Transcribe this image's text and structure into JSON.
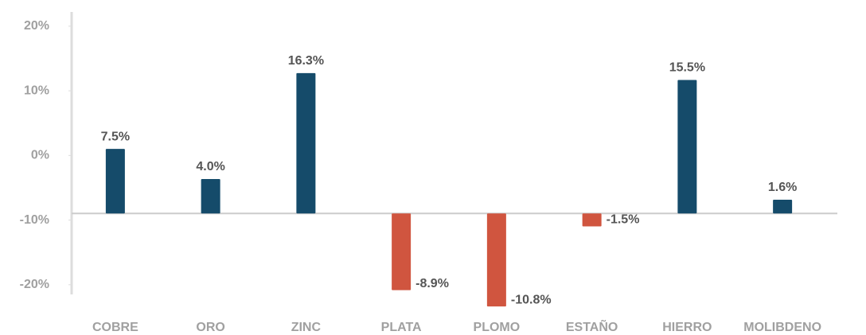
{
  "chart_data": {
    "type": "bar",
    "categories": [
      "COBRE",
      "ORO",
      "ZINC",
      "PLATA",
      "PLOMO",
      "ESTAÑO",
      "HIERRO",
      "MOLIBDENO"
    ],
    "series": [
      {
        "axis": "y2",
        "values": [
          7.5,
          4.0,
          16.3,
          -8.9,
          -10.8,
          -1.5,
          15.5,
          1.6
        ],
        "value_labels": [
          "7.5%",
          "4.0%",
          "16.3%",
          "-8.9%",
          "-10.8%",
          "-1.5%",
          "15.5%",
          "1.6%"
        ],
        "colors": [
          "#154b6a",
          "#154b6a",
          "#154b6a",
          "#d0553f",
          "#d0553f",
          "#d0553f",
          "#154b6a",
          "#154b6a"
        ]
      }
    ],
    "ylim": [
      -21.5,
      22.2
    ],
    "yticks": [
      {
        "value": 20,
        "label": "20%"
      },
      {
        "value": 10,
        "label": "10%"
      },
      {
        "value": 0,
        "label": "0%"
      },
      {
        "value": -10,
        "label": "-10%"
      },
      {
        "value": -20,
        "label": "-20%"
      }
    ],
    "y2lim": [
      -9.4,
      23.4
    ],
    "grid": false
  }
}
